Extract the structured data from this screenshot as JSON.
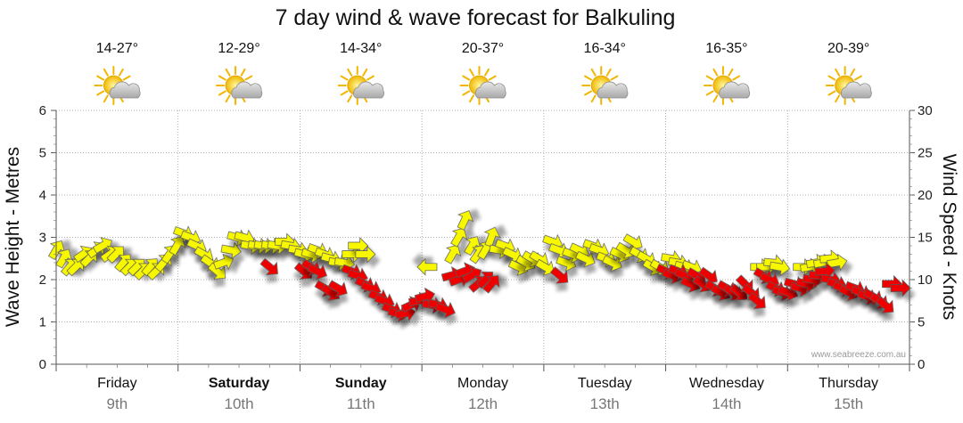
{
  "chart_data": {
    "type": "scatter",
    "title": "7 day wind & wave forecast for Balkuling",
    "ylabel_left": "Wave Height - Metres",
    "ylabel_right": "Wind Speed - Knots",
    "ylim_left": [
      0,
      6
    ],
    "ylim_right": [
      0,
      30
    ],
    "yticks_left": [
      "0",
      "1",
      "2",
      "3",
      "4",
      "5",
      "6"
    ],
    "yticks_right": [
      "0",
      "5",
      "10",
      "15",
      "20",
      "25",
      "30"
    ],
    "grid": true,
    "days": [
      {
        "name": "Friday",
        "date": "9th",
        "temp": "14-27°",
        "icon": "partly-cloudy-icon",
        "bold": false
      },
      {
        "name": "Saturday",
        "date": "10th",
        "temp": "12-29°",
        "icon": "partly-cloudy-icon",
        "bold": true
      },
      {
        "name": "Sunday",
        "date": "11th",
        "temp": "14-34°",
        "icon": "partly-cloudy-icon",
        "bold": true
      },
      {
        "name": "Monday",
        "date": "12th",
        "temp": "20-37°",
        "icon": "partly-cloudy-icon",
        "bold": false
      },
      {
        "name": "Tuesday",
        "date": "13th",
        "temp": "16-34°",
        "icon": "partly-cloudy-icon",
        "bold": false
      },
      {
        "name": "Wednesday",
        "date": "14th",
        "temp": "16-35°",
        "icon": "partly-cloudy-icon",
        "bold": false
      },
      {
        "name": "Thursday",
        "date": "15th",
        "temp": "20-39°",
        "icon": "partly-cloudy-icon",
        "bold": false
      }
    ],
    "series": [
      {
        "color": "#f7f700",
        "note": "wind arrows under ~12 knots",
        "points": [
          [
            0.0,
            13.5,
            60
          ],
          [
            0.06,
            12.5,
            60
          ],
          [
            0.11,
            11.5,
            50
          ],
          [
            0.16,
            11.5,
            45
          ],
          [
            0.22,
            13.0,
            35
          ],
          [
            0.27,
            12.5,
            45
          ],
          [
            0.33,
            13.5,
            35
          ],
          [
            0.38,
            14.0,
            30
          ],
          [
            0.44,
            13.0,
            35
          ],
          [
            0.49,
            13.0,
            45
          ],
          [
            0.55,
            12.0,
            50
          ],
          [
            0.6,
            11.5,
            45
          ],
          [
            0.66,
            11.5,
            45
          ],
          [
            0.71,
            11.0,
            45
          ],
          [
            0.77,
            11.5,
            50
          ],
          [
            0.82,
            11.0,
            45
          ],
          [
            0.88,
            12.0,
            50
          ],
          [
            0.93,
            13.0,
            55
          ],
          [
            0.99,
            14.0,
            60
          ],
          [
            1.04,
            15.5,
            -20
          ],
          [
            1.1,
            15.0,
            -20
          ],
          [
            1.15,
            14.0,
            -25
          ],
          [
            1.21,
            13.0,
            -30
          ],
          [
            1.26,
            12.0,
            -35
          ],
          [
            1.32,
            11.0,
            -40
          ],
          [
            1.37,
            12.0,
            20
          ],
          [
            1.43,
            13.5,
            -10
          ],
          [
            1.48,
            15.0,
            -15
          ],
          [
            1.54,
            15.0,
            -15
          ],
          [
            1.59,
            14.0,
            -10
          ],
          [
            1.65,
            14.0,
            -10
          ],
          [
            1.7,
            14.0,
            -10
          ],
          [
            1.76,
            14.0,
            -10
          ],
          [
            1.81,
            14.0,
            -10
          ],
          [
            1.87,
            14.5,
            0
          ],
          [
            1.92,
            14.0,
            -10
          ],
          [
            1.98,
            13.5,
            -10
          ],
          [
            2.03,
            13.0,
            -15
          ],
          [
            2.09,
            13.0,
            -15
          ],
          [
            2.14,
            13.5,
            -20
          ],
          [
            2.2,
            13.0,
            -20
          ],
          [
            2.25,
            12.5,
            -15
          ],
          [
            2.31,
            12.0,
            -10
          ],
          [
            2.36,
            12.0,
            -10
          ],
          [
            2.42,
            13.0,
            0
          ],
          [
            2.47,
            14.0,
            0
          ],
          [
            2.53,
            13.0,
            0
          ],
          [
            3.05,
            11.5,
            180
          ],
          [
            3.25,
            13.0,
            60
          ],
          [
            3.3,
            15.0,
            60
          ],
          [
            3.35,
            17.0,
            65
          ],
          [
            3.41,
            14.0,
            60
          ],
          [
            3.46,
            13.0,
            55
          ],
          [
            3.52,
            13.5,
            60
          ],
          [
            3.57,
            15.0,
            70
          ],
          [
            3.63,
            13.5,
            -10
          ],
          [
            3.68,
            14.0,
            -20
          ],
          [
            3.74,
            13.0,
            -25
          ],
          [
            3.79,
            11.5,
            -25
          ],
          [
            3.85,
            12.0,
            -30
          ],
          [
            3.9,
            12.5,
            -30
          ],
          [
            3.96,
            12.5,
            -30
          ],
          [
            4.01,
            11.5,
            -30
          ],
          [
            4.07,
            14.5,
            -20
          ],
          [
            4.12,
            13.5,
            -20
          ],
          [
            4.18,
            12.0,
            -20
          ],
          [
            4.23,
            13.0,
            -20
          ],
          [
            4.29,
            13.5,
            -25
          ],
          [
            4.34,
            12.5,
            -25
          ],
          [
            4.4,
            14.0,
            -20
          ],
          [
            4.45,
            13.5,
            -20
          ],
          [
            4.51,
            12.5,
            -20
          ],
          [
            4.56,
            12.0,
            -25
          ],
          [
            4.62,
            13.0,
            -25
          ],
          [
            4.67,
            13.5,
            -30
          ],
          [
            4.73,
            14.5,
            -30
          ],
          [
            4.78,
            13.0,
            -30
          ],
          [
            4.84,
            12.5,
            -30
          ],
          [
            4.89,
            11.5,
            -30
          ],
          [
            4.95,
            11.5,
            -30
          ],
          [
            5.04,
            12.5,
            -10
          ],
          [
            5.1,
            12.0,
            -10
          ],
          [
            5.15,
            11.5,
            -15
          ],
          [
            5.21,
            11.5,
            -20
          ],
          [
            5.77,
            11.5,
            0
          ],
          [
            5.82,
            11.5,
            0
          ],
          [
            5.88,
            12.0,
            -5
          ],
          [
            5.93,
            11.5,
            -10
          ],
          [
            6.12,
            11.5,
            0
          ],
          [
            6.18,
            11.5,
            10
          ],
          [
            6.23,
            12.0,
            10
          ],
          [
            6.29,
            12.0,
            10
          ],
          [
            6.34,
            12.5,
            5
          ],
          [
            6.4,
            12.0,
            10
          ]
        ]
      },
      {
        "color": "#ee0000",
        "note": "wind arrows over ~12 knots",
        "points": [
          [
            1.75,
            11.5,
            -40
          ],
          [
            2.03,
            11.0,
            -40
          ],
          [
            2.09,
            11.5,
            -30
          ],
          [
            2.14,
            11.0,
            -25
          ],
          [
            2.2,
            9.0,
            -30
          ],
          [
            2.25,
            8.5,
            -35
          ],
          [
            2.31,
            9.0,
            -30
          ],
          [
            2.42,
            11.0,
            -20
          ],
          [
            2.47,
            10.5,
            -15
          ],
          [
            2.53,
            9.5,
            -25
          ],
          [
            2.58,
            9.0,
            -20
          ],
          [
            2.64,
            8.0,
            -20
          ],
          [
            2.69,
            7.5,
            -20
          ],
          [
            2.75,
            6.5,
            -20
          ],
          [
            2.8,
            6.0,
            -15
          ],
          [
            2.86,
            6.0,
            10
          ],
          [
            2.91,
            7.0,
            25
          ],
          [
            2.97,
            7.5,
            10
          ],
          [
            3.02,
            8.0,
            15
          ],
          [
            3.08,
            7.0,
            -10
          ],
          [
            3.13,
            7.0,
            -15
          ],
          [
            3.19,
            6.5,
            -20
          ],
          [
            3.24,
            10.5,
            15
          ],
          [
            3.3,
            10.0,
            20
          ],
          [
            3.35,
            11.0,
            20
          ],
          [
            3.41,
            10.5,
            30
          ],
          [
            3.46,
            9.5,
            40
          ],
          [
            3.52,
            10.0,
            45
          ],
          [
            3.57,
            9.5,
            50
          ],
          [
            4.13,
            10.5,
            -40
          ],
          [
            5.0,
            11.0,
            -25
          ],
          [
            5.05,
            10.5,
            -20
          ],
          [
            5.1,
            11.0,
            -20
          ],
          [
            5.15,
            10.5,
            -25
          ],
          [
            5.2,
            9.5,
            -25
          ],
          [
            5.25,
            10.5,
            -30
          ],
          [
            5.3,
            9.5,
            -35
          ],
          [
            5.35,
            10.5,
            -35
          ],
          [
            5.4,
            9.0,
            -30
          ],
          [
            5.45,
            8.5,
            -30
          ],
          [
            5.5,
            9.0,
            -30
          ],
          [
            5.55,
            8.5,
            -35
          ],
          [
            5.6,
            8.5,
            -40
          ],
          [
            5.65,
            9.5,
            -45
          ],
          [
            5.7,
            8.5,
            -40
          ],
          [
            5.75,
            7.5,
            -40
          ],
          [
            5.8,
            10.5,
            -30
          ],
          [
            5.85,
            10.0,
            -25
          ],
          [
            5.9,
            9.0,
            -25
          ],
          [
            5.95,
            8.5,
            -20
          ],
          [
            6.0,
            8.5,
            -20
          ],
          [
            6.05,
            9.5,
            -15
          ],
          [
            6.1,
            9.0,
            -15
          ],
          [
            6.15,
            9.5,
            -15
          ],
          [
            6.2,
            10.0,
            -10
          ],
          [
            6.25,
            10.5,
            -5
          ],
          [
            6.3,
            11.0,
            5
          ],
          [
            6.35,
            10.0,
            -10
          ],
          [
            6.4,
            9.5,
            -15
          ],
          [
            6.45,
            9.0,
            -20
          ],
          [
            6.5,
            8.5,
            -25
          ],
          [
            6.55,
            9.0,
            -20
          ],
          [
            6.6,
            8.5,
            -20
          ],
          [
            6.65,
            8.0,
            -20
          ],
          [
            6.7,
            8.0,
            -30
          ],
          [
            6.75,
            7.5,
            -35
          ],
          [
            6.8,
            7.0,
            -40
          ],
          [
            6.85,
            9.5,
            0
          ],
          [
            6.92,
            9.0,
            0
          ]
        ]
      }
    ],
    "credit": "www.seabreeze.com.au"
  }
}
